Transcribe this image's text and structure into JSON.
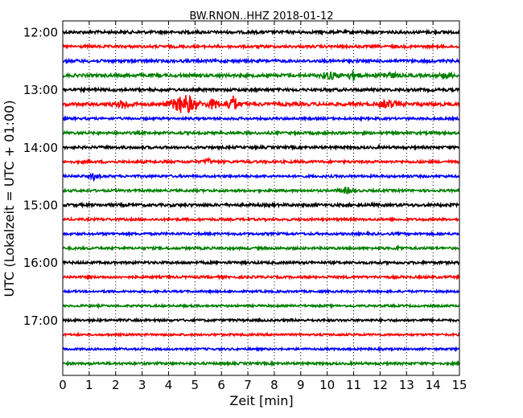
{
  "chart_data": {
    "type": "line",
    "title": "BW.RNON..HHZ 2018-01-12",
    "xlabel": "Zeit  [min]",
    "ylabel": "UTC (Lokalzeit = UTC + 01:00)",
    "xlim": [
      0,
      15
    ],
    "x_ticks": [
      0,
      1,
      2,
      3,
      4,
      5,
      6,
      7,
      8,
      9,
      10,
      11,
      12,
      13,
      14,
      15
    ],
    "y_tick_labels": [
      "12:00",
      "13:00",
      "14:00",
      "15:00",
      "16:00",
      "17:00"
    ],
    "x_grid": true,
    "trace_colors": [
      "#000000",
      "#ff0000",
      "#0000ff",
      "#008000"
    ],
    "traces": [
      {
        "start": "12:00",
        "amplitude": 0.22
      },
      {
        "start": "12:15",
        "amplitude": 0.2
      },
      {
        "start": "12:30",
        "amplitude": 0.22
      },
      {
        "start": "12:45",
        "amplitude": 0.24,
        "events": [
          {
            "t": 10.1,
            "amp": 0.45,
            "dur": 0.6
          },
          {
            "t": 11.0,
            "amp": 0.6,
            "dur": 0.4
          },
          {
            "t": 12.3,
            "amp": 0.35,
            "dur": 0.6
          },
          {
            "t": 14.5,
            "amp": 0.3,
            "dur": 0.5
          }
        ]
      },
      {
        "start": "13:00",
        "amplitude": 0.22
      },
      {
        "start": "13:15",
        "amplitude": 0.26,
        "events": [
          {
            "t": 2.3,
            "amp": 0.45,
            "dur": 0.6
          },
          {
            "t": 4.6,
            "amp": 1.3,
            "dur": 0.9
          },
          {
            "t": 5.7,
            "amp": 0.7,
            "dur": 0.4
          },
          {
            "t": 6.4,
            "amp": 1.2,
            "dur": 0.4
          },
          {
            "t": 12.3,
            "amp": 0.45,
            "dur": 0.6
          }
        ]
      },
      {
        "start": "13:30",
        "amplitude": 0.18
      },
      {
        "start": "13:45",
        "amplitude": 0.2
      },
      {
        "start": "14:00",
        "amplitude": 0.2
      },
      {
        "start": "14:15",
        "amplitude": 0.2,
        "events": [
          {
            "t": 5.5,
            "amp": 0.35,
            "dur": 0.3
          }
        ]
      },
      {
        "start": "14:30",
        "amplitude": 0.18,
        "events": [
          {
            "t": 1.2,
            "amp": 0.45,
            "dur": 0.3
          }
        ]
      },
      {
        "start": "14:45",
        "amplitude": 0.18,
        "events": [
          {
            "t": 10.7,
            "amp": 0.35,
            "dur": 0.5
          }
        ]
      },
      {
        "start": "15:00",
        "amplitude": 0.22
      },
      {
        "start": "15:15",
        "amplitude": 0.18
      },
      {
        "start": "15:30",
        "amplitude": 0.18
      },
      {
        "start": "15:45",
        "amplitude": 0.18,
        "events": [
          {
            "t": 12.7,
            "amp": 0.3,
            "dur": 0.2
          }
        ]
      },
      {
        "start": "16:00",
        "amplitude": 0.2
      },
      {
        "start": "16:15",
        "amplitude": 0.18
      },
      {
        "start": "16:30",
        "amplitude": 0.16
      },
      {
        "start": "16:45",
        "amplitude": 0.16
      },
      {
        "start": "17:00",
        "amplitude": 0.18
      },
      {
        "start": "17:15",
        "amplitude": 0.16
      },
      {
        "start": "17:30",
        "amplitude": 0.16
      },
      {
        "start": "17:45",
        "amplitude": 0.18
      }
    ]
  }
}
